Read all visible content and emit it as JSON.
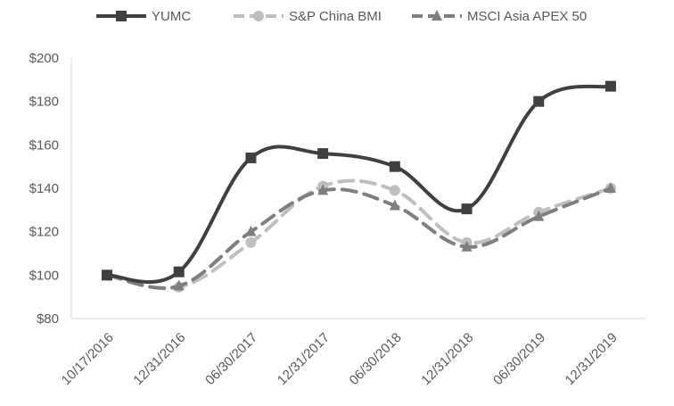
{
  "chart_data": {
    "type": "line",
    "title": "",
    "xlabel": "",
    "ylabel": "",
    "categories": [
      "10/17/2016",
      "12/31/2016",
      "06/30/2017",
      "12/31/2017",
      "06/30/2018",
      "12/31/2018",
      "06/30/2019",
      "12/31/2019"
    ],
    "y_tick_labels": [
      "$80",
      "$100",
      "$120",
      "$140",
      "$160",
      "$180",
      "$200"
    ],
    "y_ticks": [
      80,
      100,
      120,
      140,
      160,
      180,
      200
    ],
    "ylim": [
      80,
      200
    ],
    "grid": false,
    "legend_position": "top",
    "series": [
      {
        "name": "YUMC",
        "color": "#404040",
        "dash": "solid",
        "marker": "square",
        "values": [
          100,
          101.5,
          154,
          156,
          150,
          130.5,
          180,
          187
        ]
      },
      {
        "name": "S&P China BMI",
        "color": "#bfbfbf",
        "dash": "dashed",
        "marker": "circle",
        "values": [
          100,
          94.5,
          115,
          141,
          139,
          115,
          129,
          140
        ]
      },
      {
        "name": "MSCI Asia APEX 50",
        "color": "#7f7f7f",
        "dash": "dashed",
        "marker": "triangle",
        "values": [
          100,
          95,
          120,
          139,
          132,
          113,
          127,
          140
        ]
      }
    ]
  }
}
